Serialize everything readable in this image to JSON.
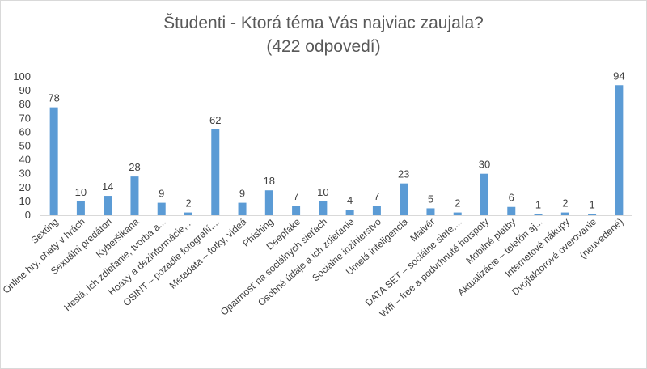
{
  "chart_data": {
    "type": "bar",
    "title": "Študenti - Ktorá téma Vás najviac zaujala?",
    "subtitle": "(422 odpovedí)",
    "xlabel": "",
    "ylabel": "",
    "ylim": [
      0,
      100
    ],
    "yticks": [
      0,
      10,
      20,
      30,
      40,
      50,
      60,
      70,
      80,
      90,
      100
    ],
    "grid": false,
    "legend": "none",
    "bar_color": "#5b9bd5",
    "categories": [
      "Sexting",
      "Online hry, chaty v hrách",
      "Sexuálni predátori",
      "Kyberšikana",
      "Heslá, ich zdieľanie, tvorba a...",
      "Hoaxy a dezinformácie,...",
      "OSINT – pozadie fotografií,...",
      "Metadata – fotky, videá",
      "Phishing",
      "Deepfake",
      "Opatrnosť na sociálnych sieťach",
      "Osobné údaje a ich zdieľanie",
      "Sociálne inžinierstvo",
      "Umelá inteligencia",
      "Malvér",
      "DATA SET – sociálne siete,...",
      "Wifi – free a podvrhnuté hotspoty",
      "Mobilné platby",
      "Aktualizácie – telefón aj...",
      "Internetové nákupy",
      "Dvojfaktorové overovanie",
      "(neuvedené)"
    ],
    "values": [
      78,
      10,
      14,
      28,
      9,
      2,
      62,
      9,
      18,
      7,
      10,
      4,
      7,
      23,
      5,
      2,
      30,
      6,
      1,
      2,
      1,
      94
    ]
  }
}
